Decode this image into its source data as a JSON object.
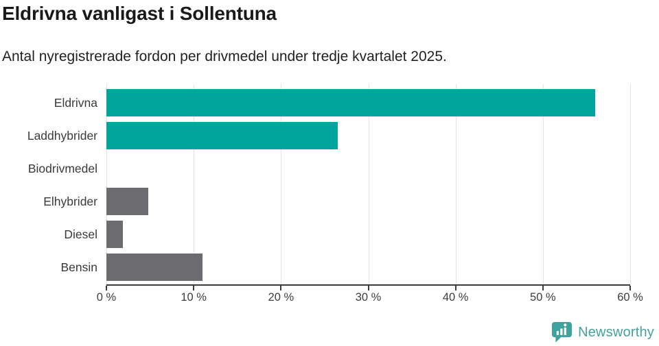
{
  "header": {
    "title": "Eldrivna vanligast i Sollentuna",
    "subtitle": "Antal nyregistrerade fordon per drivmedel under tredje kvartalet 2025."
  },
  "chart_data": {
    "type": "bar",
    "orientation": "horizontal",
    "title": "Eldrivna vanligast i Sollentuna",
    "subtitle": "Antal nyregistrerade fordon per drivmedel under tredje kvartalet 2025.",
    "categories": [
      "Eldrivna",
      "Laddhybrider",
      "Biodrivmedel",
      "Elhybrider",
      "Diesel",
      "Bensin"
    ],
    "values": [
      56,
      26.5,
      0,
      4.8,
      1.9,
      11
    ],
    "unit": "%",
    "xlim": [
      0,
      60
    ],
    "x_ticks": [
      "0 %",
      "10 %",
      "20 %",
      "30 %",
      "40 %",
      "50 %",
      "60 %"
    ],
    "bar_colors": [
      "#00a59b",
      "#00a59b",
      "#6b6b70",
      "#6b6b70",
      "#6b6b70",
      "#6b6b70"
    ],
    "grid": true,
    "legend": "none"
  },
  "colors": {
    "accent_teal": "#00a59b",
    "neutral_gray": "#6b6b70",
    "gridline": "#e3e3e3",
    "axis": "#3c3c3c",
    "brand_teal": "#44a19b"
  },
  "footer": {
    "brand": "Newsworthy",
    "logo_icon": "bar-chart-speech-bubble-icon"
  }
}
